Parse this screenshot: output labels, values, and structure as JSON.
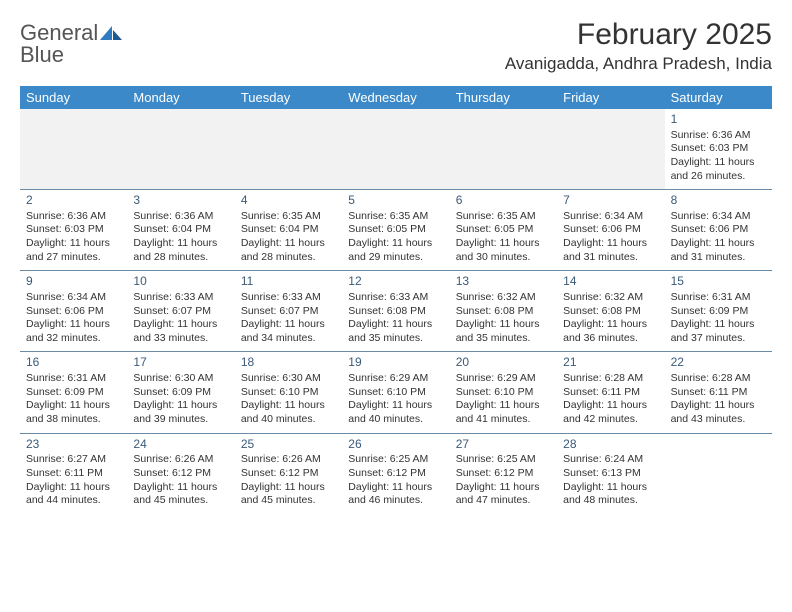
{
  "brand": {
    "word1": "General",
    "word2": "Blue"
  },
  "title": "February 2025",
  "location": "Avanigadda, Andhra Pradesh, India",
  "colors": {
    "header_bg": "#3b89c9",
    "header_text": "#ffffff",
    "daynum": "#3a5a78",
    "rule": "#6a8aa6",
    "body_text": "#333333",
    "logo_gray": "#555555",
    "logo_blue": "#2f7bbf"
  },
  "day_names": [
    "Sunday",
    "Monday",
    "Tuesday",
    "Wednesday",
    "Thursday",
    "Friday",
    "Saturday"
  ],
  "weeks": [
    [
      null,
      null,
      null,
      null,
      null,
      null,
      {
        "n": "1",
        "sunrise": "6:36 AM",
        "sunset": "6:03 PM",
        "daylight": "11 hours and 26 minutes."
      }
    ],
    [
      {
        "n": "2",
        "sunrise": "6:36 AM",
        "sunset": "6:03 PM",
        "daylight": "11 hours and 27 minutes."
      },
      {
        "n": "3",
        "sunrise": "6:36 AM",
        "sunset": "6:04 PM",
        "daylight": "11 hours and 28 minutes."
      },
      {
        "n": "4",
        "sunrise": "6:35 AM",
        "sunset": "6:04 PM",
        "daylight": "11 hours and 28 minutes."
      },
      {
        "n": "5",
        "sunrise": "6:35 AM",
        "sunset": "6:05 PM",
        "daylight": "11 hours and 29 minutes."
      },
      {
        "n": "6",
        "sunrise": "6:35 AM",
        "sunset": "6:05 PM",
        "daylight": "11 hours and 30 minutes."
      },
      {
        "n": "7",
        "sunrise": "6:34 AM",
        "sunset": "6:06 PM",
        "daylight": "11 hours and 31 minutes."
      },
      {
        "n": "8",
        "sunrise": "6:34 AM",
        "sunset": "6:06 PM",
        "daylight": "11 hours and 31 minutes."
      }
    ],
    [
      {
        "n": "9",
        "sunrise": "6:34 AM",
        "sunset": "6:06 PM",
        "daylight": "11 hours and 32 minutes."
      },
      {
        "n": "10",
        "sunrise": "6:33 AM",
        "sunset": "6:07 PM",
        "daylight": "11 hours and 33 minutes."
      },
      {
        "n": "11",
        "sunrise": "6:33 AM",
        "sunset": "6:07 PM",
        "daylight": "11 hours and 34 minutes."
      },
      {
        "n": "12",
        "sunrise": "6:33 AM",
        "sunset": "6:08 PM",
        "daylight": "11 hours and 35 minutes."
      },
      {
        "n": "13",
        "sunrise": "6:32 AM",
        "sunset": "6:08 PM",
        "daylight": "11 hours and 35 minutes."
      },
      {
        "n": "14",
        "sunrise": "6:32 AM",
        "sunset": "6:08 PM",
        "daylight": "11 hours and 36 minutes."
      },
      {
        "n": "15",
        "sunrise": "6:31 AM",
        "sunset": "6:09 PM",
        "daylight": "11 hours and 37 minutes."
      }
    ],
    [
      {
        "n": "16",
        "sunrise": "6:31 AM",
        "sunset": "6:09 PM",
        "daylight": "11 hours and 38 minutes."
      },
      {
        "n": "17",
        "sunrise": "6:30 AM",
        "sunset": "6:09 PM",
        "daylight": "11 hours and 39 minutes."
      },
      {
        "n": "18",
        "sunrise": "6:30 AM",
        "sunset": "6:10 PM",
        "daylight": "11 hours and 40 minutes."
      },
      {
        "n": "19",
        "sunrise": "6:29 AM",
        "sunset": "6:10 PM",
        "daylight": "11 hours and 40 minutes."
      },
      {
        "n": "20",
        "sunrise": "6:29 AM",
        "sunset": "6:10 PM",
        "daylight": "11 hours and 41 minutes."
      },
      {
        "n": "21",
        "sunrise": "6:28 AM",
        "sunset": "6:11 PM",
        "daylight": "11 hours and 42 minutes."
      },
      {
        "n": "22",
        "sunrise": "6:28 AM",
        "sunset": "6:11 PM",
        "daylight": "11 hours and 43 minutes."
      }
    ],
    [
      {
        "n": "23",
        "sunrise": "6:27 AM",
        "sunset": "6:11 PM",
        "daylight": "11 hours and 44 minutes."
      },
      {
        "n": "24",
        "sunrise": "6:26 AM",
        "sunset": "6:12 PM",
        "daylight": "11 hours and 45 minutes."
      },
      {
        "n": "25",
        "sunrise": "6:26 AM",
        "sunset": "6:12 PM",
        "daylight": "11 hours and 45 minutes."
      },
      {
        "n": "26",
        "sunrise": "6:25 AM",
        "sunset": "6:12 PM",
        "daylight": "11 hours and 46 minutes."
      },
      {
        "n": "27",
        "sunrise": "6:25 AM",
        "sunset": "6:12 PM",
        "daylight": "11 hours and 47 minutes."
      },
      {
        "n": "28",
        "sunrise": "6:24 AM",
        "sunset": "6:13 PM",
        "daylight": "11 hours and 48 minutes."
      },
      null
    ]
  ],
  "labels": {
    "sunrise": "Sunrise: ",
    "sunset": "Sunset: ",
    "daylight": "Daylight: "
  }
}
